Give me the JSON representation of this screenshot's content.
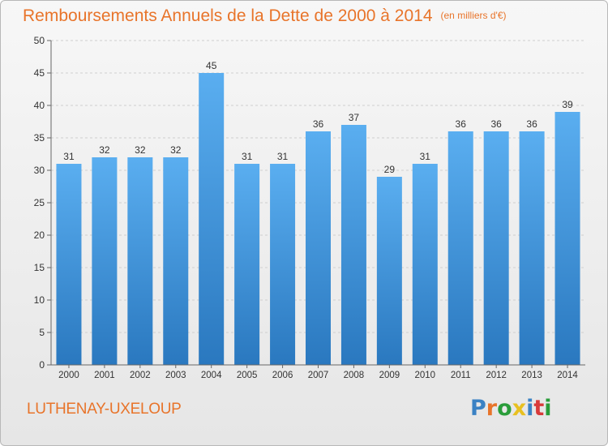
{
  "chart_data": {
    "type": "bar",
    "title": "Remboursements Annuels de la Dette de 2000 à 2014",
    "unit_label": "(en milliers d'€)",
    "categories": [
      "2000",
      "2001",
      "2002",
      "2003",
      "2004",
      "2005",
      "2006",
      "2007",
      "2008",
      "2009",
      "2010",
      "2011",
      "2012",
      "2013",
      "2014"
    ],
    "values": [
      31,
      32,
      32,
      32,
      45,
      31,
      31,
      36,
      37,
      29,
      31,
      36,
      36,
      36,
      39
    ],
    "yticks": [
      0,
      5,
      10,
      15,
      20,
      25,
      30,
      35,
      40,
      45,
      50
    ],
    "ylim": [
      0,
      50
    ],
    "xlabel": "",
    "ylabel": "",
    "grid": true,
    "bar_color": "#4a9de0",
    "bar_color_dark": "#2a78bf"
  },
  "footer": {
    "commune": "LUTHENAY-UXELOUP",
    "brand_letters": [
      "P",
      "r",
      "o",
      "x",
      "i",
      "t",
      "i"
    ],
    "brand_colors": [
      "#3b82c4",
      "#e8742a",
      "#2a9d3a",
      "#e8c020",
      "#3b82c4",
      "#d83a3a",
      "#2a9d3a"
    ]
  },
  "colors": {
    "accent": "#e8742a",
    "grid": "#cfcfcf",
    "axis": "#666666",
    "text": "#333333"
  }
}
